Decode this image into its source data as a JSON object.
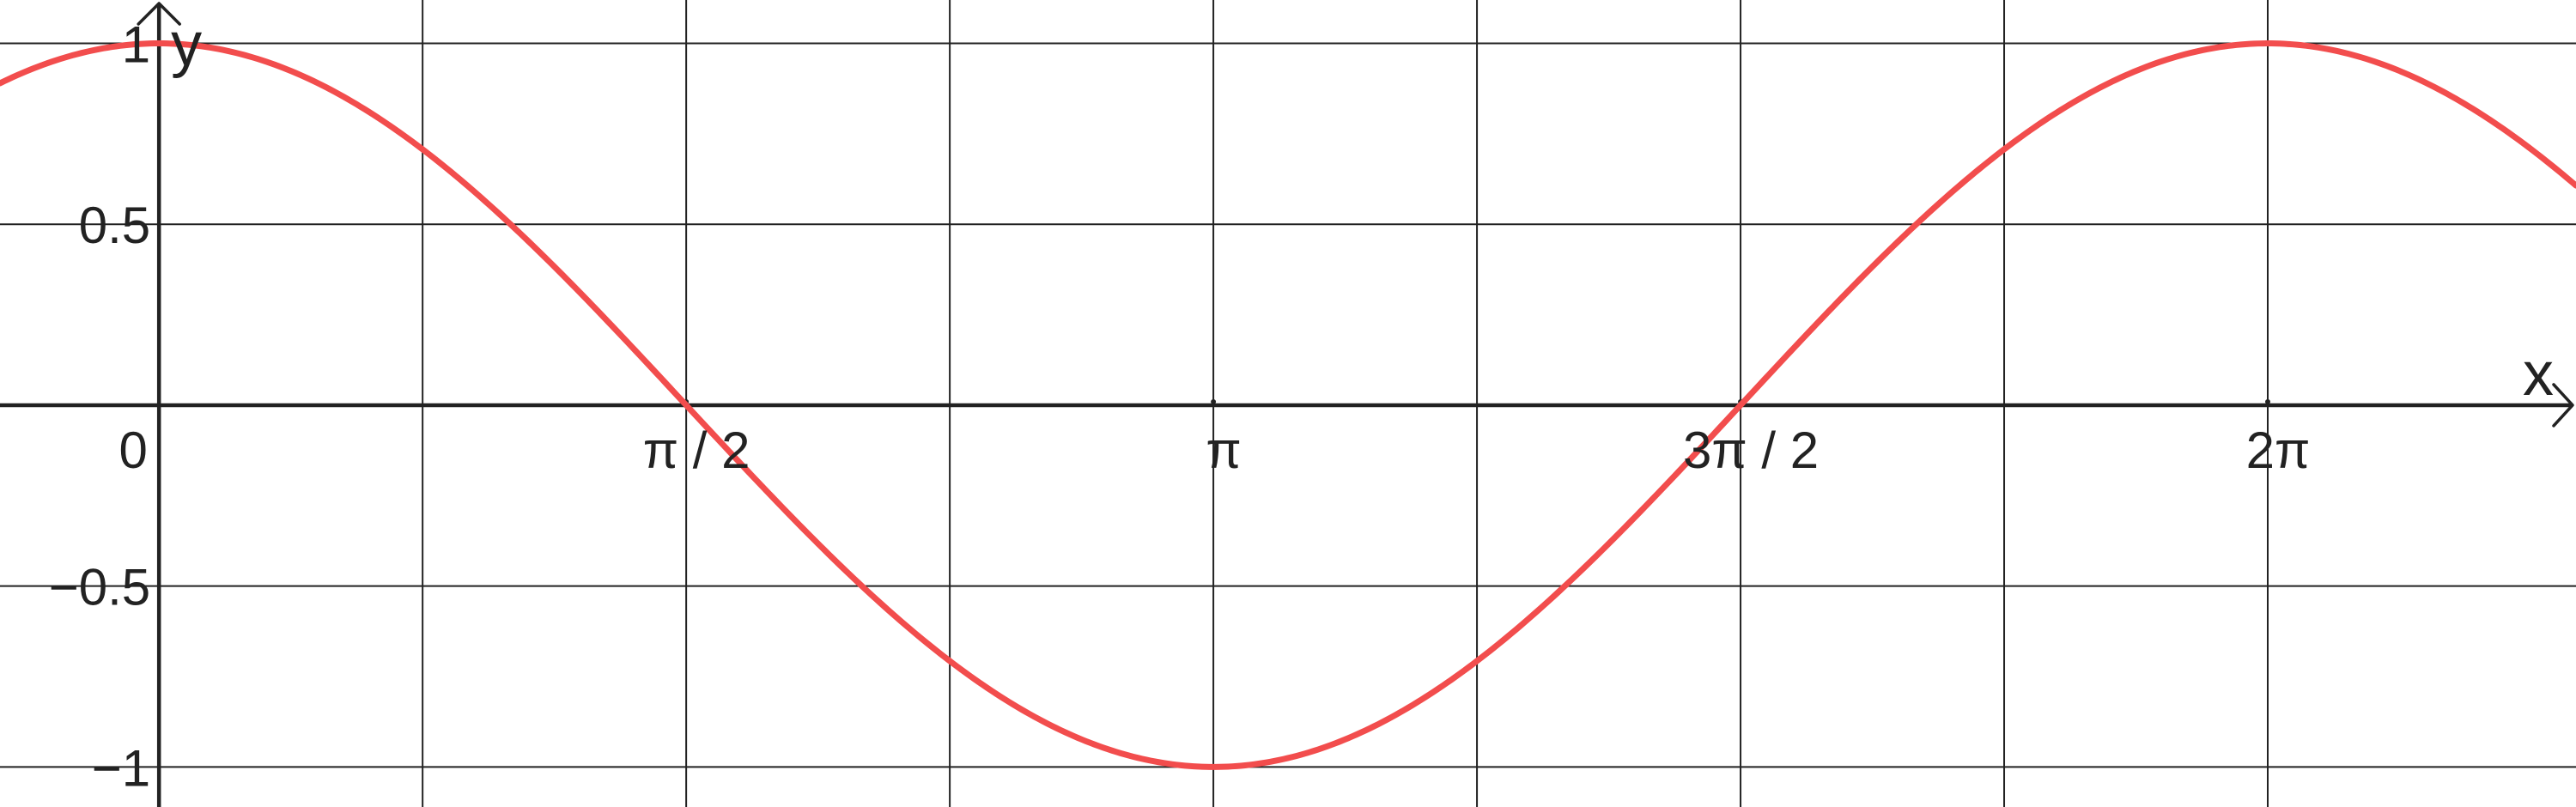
{
  "colors": {
    "curve": "#f24d4d",
    "grid": "#222222",
    "axis": "#222222",
    "text": "#222222",
    "background": "#ffffff"
  },
  "chart_data": {
    "type": "line",
    "function": "cos(x)",
    "xlabel": "x",
    "ylabel": "y",
    "xlim": [
      -0.4738,
      7.2017
    ],
    "ylim": [
      -1.1107,
      1.1199
    ],
    "grid": true,
    "x_gridlines": [
      0,
      0.7854,
      1.5708,
      2.3562,
      3.1416,
      3.927,
      4.7124,
      5.4978,
      6.2832
    ],
    "y_gridlines": [
      -1,
      -0.5,
      0,
      0.5,
      1
    ],
    "x_ticks": [
      {
        "value": 1.5708,
        "label": "π / 2"
      },
      {
        "value": 3.1416,
        "label": "π"
      },
      {
        "value": 4.7124,
        "label": "3π / 2"
      },
      {
        "value": 6.2832,
        "label": "2π"
      }
    ],
    "y_ticks": [
      {
        "value": 1,
        "label": "1"
      },
      {
        "value": 0.5,
        "label": "0.5"
      },
      {
        "value": -0.5,
        "label": "−0.5"
      },
      {
        "value": -1,
        "label": "−1"
      }
    ],
    "origin_label": "0",
    "series": [
      {
        "color": "#f24d4d",
        "x": [
          -0.4738,
          0,
          0.7854,
          1.5708,
          2.3562,
          3.1416,
          3.927,
          4.7124,
          5.4978,
          6.2832,
          7.2017
        ],
        "y": [
          0.8898,
          1,
          0.7071,
          0,
          -0.7071,
          -1,
          -0.7071,
          0,
          0.7071,
          1,
          0.6058
        ]
      }
    ]
  }
}
